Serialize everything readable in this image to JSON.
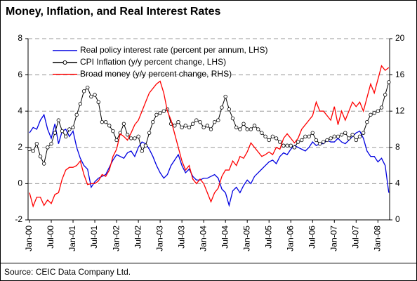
{
  "chart_data": {
    "type": "line",
    "title": "Money, Inflation, and Real Interest Rates",
    "source": "Source: CEIC Data Company Ltd.",
    "categories": [
      "Jan-00",
      null,
      null,
      null,
      null,
      null,
      "Jul-00",
      null,
      null,
      null,
      null,
      null,
      "Jan-01",
      null,
      null,
      null,
      null,
      null,
      "Jul-01",
      null,
      null,
      null,
      null,
      null,
      "Jan-02",
      null,
      null,
      null,
      null,
      null,
      "Jul-02",
      null,
      null,
      null,
      null,
      null,
      "Jan-03",
      null,
      null,
      null,
      null,
      null,
      "Jul-03",
      null,
      null,
      null,
      null,
      null,
      "Jan-04",
      null,
      null,
      null,
      null,
      null,
      "Jul-04",
      null,
      null,
      null,
      null,
      null,
      "Jan-05",
      null,
      null,
      null,
      null,
      null,
      "Jul-05",
      null,
      null,
      null,
      null,
      null,
      "Jan-06",
      null,
      null,
      null,
      null,
      null,
      "Jul-06",
      null,
      null,
      null,
      null,
      null,
      "Jan-07",
      null,
      null,
      null,
      null,
      null,
      "Jul-07",
      null,
      null,
      null,
      null,
      null,
      "Jan-08",
      null,
      null,
      null
    ],
    "series": [
      {
        "name": "Real policy interest rate (percent per annum, LHS)",
        "color": "#0000e0",
        "axis": "y",
        "marker": false,
        "values": [
          2.8,
          3.1,
          3.0,
          3.5,
          3.8,
          3.0,
          2.5,
          3.3,
          2.2,
          2.9,
          3.0,
          2.6,
          2.9,
          2.0,
          1.4,
          1.0,
          0.8,
          -0.2,
          0.1,
          0.3,
          0.4,
          0.5,
          0.9,
          1.3,
          1.6,
          1.5,
          1.4,
          1.7,
          1.8,
          1.5,
          2.0,
          2.3,
          2.2,
          1.9,
          1.5,
          1.0,
          0.6,
          0.3,
          0.5,
          1.0,
          1.3,
          1.6,
          1.0,
          0.6,
          0.8,
          0.4,
          0.2,
          0.2,
          0.3,
          0.3,
          0.4,
          0.5,
          0.3,
          -0.3,
          -0.5,
          -1.2,
          -0.4,
          -0.2,
          -0.5,
          -0.1,
          0.2,
          0.0,
          0.4,
          0.6,
          0.8,
          1.0,
          1.2,
          1.3,
          1.1,
          1.5,
          1.7,
          1.6,
          1.9,
          2.1,
          2.0,
          1.9,
          1.8,
          2.0,
          2.3,
          2.1,
          2.2,
          2.2,
          2.4,
          2.3,
          2.3,
          2.5,
          2.3,
          2.2,
          2.4,
          2.6,
          2.8,
          2.9,
          2.5,
          1.8,
          1.5,
          1.5,
          1.2,
          1.4,
          1.0,
          -0.5
        ]
      },
      {
        "name": "CPI Inflation (y/y percent change, LHS)",
        "color": "#000000",
        "axis": "y",
        "marker": true,
        "values": [
          1.9,
          1.8,
          2.2,
          1.5,
          1.1,
          2.0,
          2.2,
          2.8,
          3.5,
          2.9,
          2.6,
          3.0,
          3.1,
          3.8,
          4.4,
          5.1,
          5.3,
          4.8,
          4.9,
          4.5,
          3.4,
          3.4,
          3.2,
          2.9,
          2.4,
          2.8,
          3.3,
          2.7,
          2.5,
          2.5,
          2.6,
          1.8,
          2.1,
          2.8,
          3.4,
          3.8,
          3.9,
          4.0,
          4.1,
          3.3,
          3.2,
          3.4,
          3.1,
          3.2,
          3.1,
          3.3,
          3.5,
          3.4,
          3.1,
          3.2,
          3.0,
          3.4,
          3.5,
          4.2,
          4.8,
          4.1,
          3.6,
          3.1,
          3.0,
          3.3,
          3.0,
          3.0,
          3.2,
          3.0,
          2.8,
          2.6,
          2.4,
          2.6,
          2.5,
          2.3,
          2.1,
          2.1,
          2.1,
          2.0,
          2.3,
          2.4,
          2.6,
          2.6,
          2.8,
          2.4,
          2.2,
          2.3,
          2.4,
          2.5,
          2.6,
          2.6,
          2.7,
          2.8,
          2.5,
          2.7,
          2.4,
          2.6,
          2.8,
          3.4,
          3.8,
          3.9,
          4.0,
          4.2,
          4.9,
          5.6
        ]
      },
      {
        "name": "Broad money (y/y percent change, RHS)",
        "color": "#ff0000",
        "axis": "y2",
        "marker": false,
        "values": [
          3.0,
          1.5,
          2.5,
          2.5,
          1.6,
          2.2,
          1.8,
          2.8,
          3.0,
          4.5,
          5.5,
          5.8,
          5.8,
          6.0,
          6.5,
          5.0,
          3.9,
          4.0,
          4.0,
          4.3,
          5.0,
          4.8,
          5.5,
          7.0,
          7.8,
          9.5,
          9.2,
          8.8,
          9.6,
          10.5,
          11.0,
          12.0,
          13.0,
          14.0,
          14.5,
          15.0,
          15.3,
          14.0,
          12.0,
          11.0,
          9.5,
          8.0,
          6.5,
          5.5,
          6.0,
          4.5,
          4.0,
          4.5,
          4.0,
          3.0,
          2.0,
          3.0,
          3.5,
          4.8,
          5.5,
          5.5,
          6.5,
          6.0,
          7.0,
          6.8,
          7.5,
          8.5,
          8.0,
          7.5,
          7.0,
          7.2,
          7.5,
          7.2,
          8.0,
          7.8,
          9.0,
          9.5,
          9.0,
          8.5,
          9.0,
          10.0,
          10.5,
          11.0,
          11.5,
          13.0,
          12.0,
          12.0,
          11.5,
          11.0,
          12.5,
          10.5,
          12.0,
          11.0,
          12.0,
          13.0,
          12.5,
          13.0,
          12.0,
          13.5,
          15.0,
          14.0,
          15.5,
          17.0,
          16.5,
          16.8
        ]
      }
    ],
    "ylim": [
      -2,
      8
    ],
    "yticks": [
      -2,
      0,
      2,
      4,
      6,
      8
    ],
    "y2lim": [
      0,
      20
    ],
    "y2ticks": [
      0,
      4,
      8,
      12,
      16,
      20
    ],
    "grid": true,
    "legend": "upper left"
  }
}
